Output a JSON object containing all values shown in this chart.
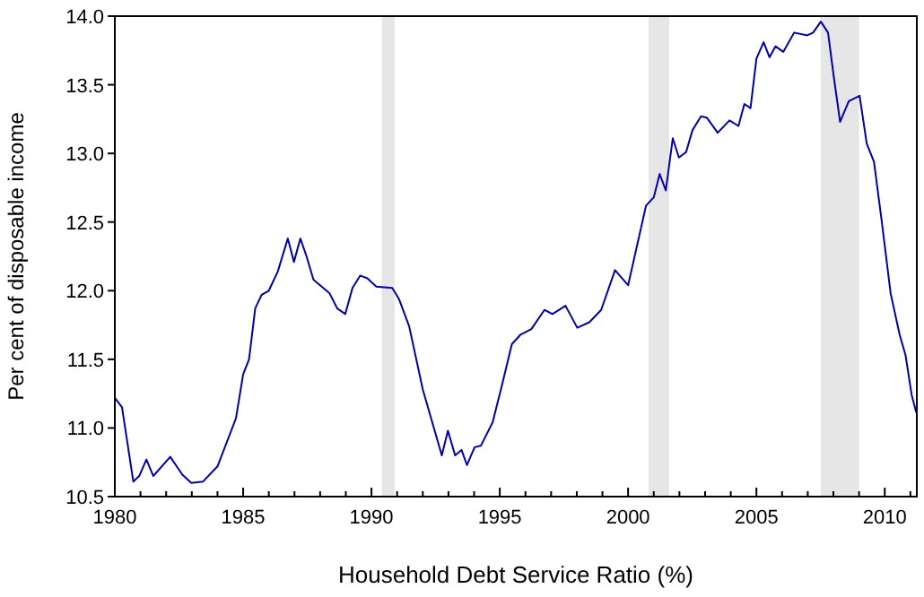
{
  "chart_data": {
    "type": "line",
    "xlabel": "Household Debt Service Ratio (%)",
    "ylabel": "Per cent of disposable income",
    "xlim": [
      1980,
      2011.25
    ],
    "ylim": [
      10.5,
      14.0
    ],
    "xticks": [
      1980,
      {
        "value": 1981,
        "label": null
      },
      {
        "value": 1982,
        "label": null
      },
      {
        "value": 1983,
        "label": null
      },
      {
        "value": 1984,
        "label": null
      },
      1985,
      {
        "value": 1986,
        "label": null
      },
      {
        "value": 1987,
        "label": null
      },
      {
        "value": 1988,
        "label": null
      },
      {
        "value": 1989,
        "label": null
      },
      1990,
      {
        "value": 1991,
        "label": null
      },
      {
        "value": 1992,
        "label": null
      },
      {
        "value": 1993,
        "label": null
      },
      {
        "value": 1994,
        "label": null
      },
      1995,
      {
        "value": 1996,
        "label": null
      },
      {
        "value": 1997,
        "label": null
      },
      {
        "value": 1998,
        "label": null
      },
      {
        "value": 1999,
        "label": null
      },
      2000,
      {
        "value": 2001,
        "label": null
      },
      {
        "value": 2002,
        "label": null
      },
      {
        "value": 2003,
        "label": null
      },
      {
        "value": 2004,
        "label": null
      },
      2005,
      {
        "value": 2006,
        "label": null
      },
      {
        "value": 2007,
        "label": null
      },
      {
        "value": 2008,
        "label": null
      },
      {
        "value": 2009,
        "label": null
      },
      2010,
      {
        "value": 2011,
        "label": null
      }
    ],
    "yticks": [
      10.5,
      {
        "value": 11,
        "label": "11.0"
      },
      11.5,
      {
        "value": 12,
        "label": "12.0"
      },
      12.5,
      {
        "value": 13,
        "label": "13.0"
      },
      13.5,
      {
        "value": 14,
        "label": "14.0"
      }
    ],
    "grid": false,
    "marker": "none",
    "line_style": "solid",
    "bands": [
      {
        "axis": "x",
        "from": 1990.4,
        "to": 1990.9,
        "color": "#e6e6e6"
      },
      {
        "axis": "x",
        "from": 2000.8,
        "to": 2001.6,
        "color": "#e6e6e6"
      },
      {
        "axis": "x",
        "from": 2007.5,
        "to": 2009.0,
        "color": "#e6e6e6"
      }
    ],
    "series": [
      {
        "color": "#0000aa",
        "x": [
          1980,
          1980.28,
          1980.72,
          1980.95,
          1981.23,
          1981.5,
          1982.16,
          1982.63,
          1982.98,
          1983.44,
          1984.0,
          1984.72,
          1985.0,
          1985.23,
          1985.47,
          1985.72,
          1986.0,
          1986.35,
          1986.74,
          1986.98,
          1987.23,
          1987.47,
          1987.74,
          1988.37,
          1988.67,
          1988.98,
          1989.26,
          1989.56,
          1989.84,
          1990.19,
          1990.81,
          1991.07,
          1991.47,
          1992.0,
          1992.74,
          1992.98,
          1993.26,
          1993.51,
          1993.72,
          1994.02,
          1994.26,
          1994.72,
          1995.07,
          1995.47,
          1995.81,
          1996.23,
          1996.74,
          1997.05,
          1997.56,
          1998.02,
          1998.49,
          1998.95,
          1999.49,
          2000.0,
          2000.7,
          2001.0,
          2001.23,
          2001.47,
          2001.74,
          2001.98,
          2002.26,
          2002.51,
          2002.84,
          2003.07,
          2003.49,
          2003.95,
          2004.3,
          2004.53,
          2004.77,
          2005.0,
          2005.28,
          2005.51,
          2005.74,
          2006.05,
          2006.47,
          2006.98,
          2007.21,
          2007.51,
          2007.79,
          2008.02,
          2008.26,
          2008.6,
          2009.02,
          2009.3,
          2009.58,
          2009.88,
          2010.23,
          2010.58,
          2010.81,
          2011.05,
          2011.23
        ],
        "values": [
          11.22,
          11.15,
          10.61,
          10.65,
          10.77,
          10.65,
          10.79,
          10.66,
          10.6,
          10.61,
          10.72,
          11.07,
          11.39,
          11.5,
          11.87,
          11.97,
          12.0,
          12.14,
          12.38,
          12.21,
          12.38,
          12.25,
          12.08,
          11.98,
          11.87,
          11.83,
          12.02,
          12.11,
          12.09,
          12.03,
          12.02,
          11.94,
          11.74,
          11.28,
          10.8,
          10.98,
          10.8,
          10.84,
          10.73,
          10.86,
          10.87,
          11.04,
          11.3,
          11.61,
          11.68,
          11.72,
          11.86,
          11.83,
          11.89,
          11.73,
          11.77,
          11.86,
          12.15,
          12.04,
          12.62,
          12.68,
          12.85,
          12.73,
          13.11,
          12.97,
          13.01,
          13.17,
          13.27,
          13.26,
          13.15,
          13.24,
          13.2,
          13.36,
          13.33,
          13.69,
          13.81,
          13.7,
          13.78,
          13.74,
          13.88,
          13.86,
          13.88,
          13.96,
          13.88,
          13.55,
          13.23,
          13.38,
          13.42,
          13.07,
          12.94,
          12.51,
          11.98,
          11.68,
          11.53,
          11.24,
          11.11
        ]
      }
    ]
  }
}
